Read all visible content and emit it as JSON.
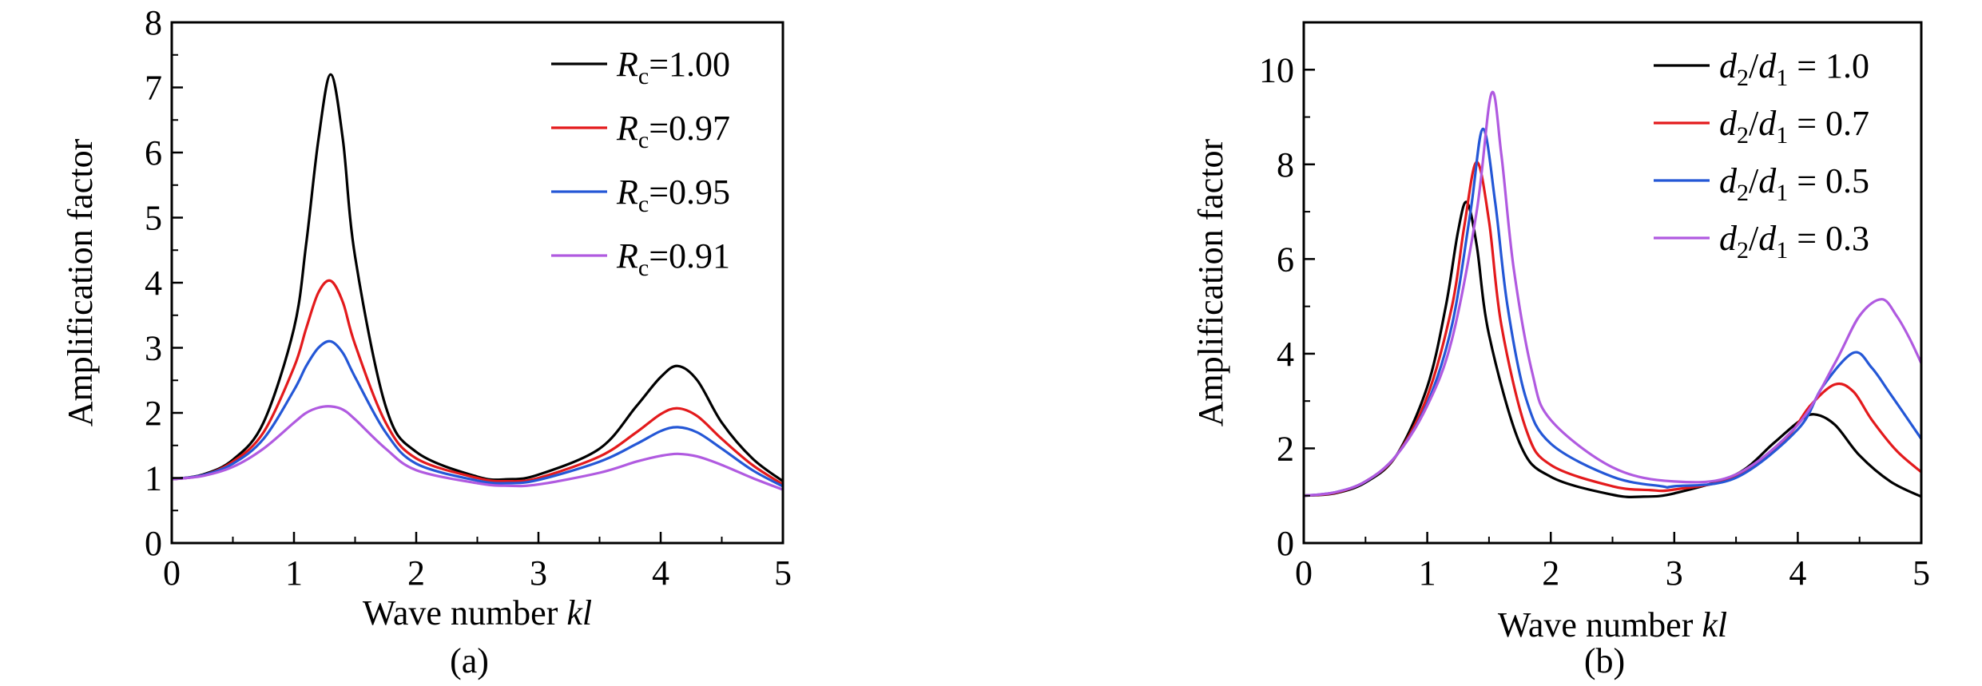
{
  "chart_data": [
    {
      "type": "line",
      "caption": "(a)",
      "xlabel_prefix": "Wave number ",
      "xlabel_var": "kl",
      "ylabel": "Amplification  factor",
      "xlim": [
        0,
        5
      ],
      "ylim": [
        0,
        8
      ],
      "xticks": [
        "0",
        "1",
        "2",
        "3",
        "4",
        "5"
      ],
      "yticks": [
        "0",
        "1",
        "2",
        "3",
        "4",
        "5",
        "6",
        "7",
        "8"
      ],
      "legend_position": "top-right",
      "grid": false,
      "series": [
        {
          "name": "Rc=1.00",
          "legend_var": "R",
          "legend_sub": "c",
          "legend_rest": "=1.00",
          "color": "#000000",
          "x": [
            0,
            0.25,
            0.5,
            0.75,
            1.0,
            1.1,
            1.2,
            1.3,
            1.4,
            1.5,
            1.75,
            2.0,
            2.5,
            2.75,
            3.0,
            3.5,
            3.8,
            4.0,
            4.14,
            4.3,
            4.5,
            4.75,
            5.0
          ],
          "y": [
            0.98,
            1.05,
            1.28,
            1.85,
            3.3,
            4.6,
            6.2,
            7.2,
            6.2,
            4.4,
            2.1,
            1.4,
            1.02,
            0.98,
            1.05,
            1.45,
            2.1,
            2.55,
            2.72,
            2.5,
            1.85,
            1.3,
            0.95
          ]
        },
        {
          "name": "Rc=0.97",
          "legend_var": "R",
          "legend_sub": "c",
          "legend_rest": "=0.97",
          "color": "#e31a1c",
          "x": [
            0,
            0.25,
            0.5,
            0.75,
            1.0,
            1.1,
            1.2,
            1.3,
            1.4,
            1.5,
            1.75,
            2.0,
            2.5,
            2.75,
            3.0,
            3.5,
            3.8,
            4.0,
            4.14,
            4.3,
            4.5,
            4.75,
            5.0
          ],
          "y": [
            0.98,
            1.04,
            1.25,
            1.7,
            2.7,
            3.3,
            3.85,
            4.03,
            3.7,
            3.05,
            1.85,
            1.3,
            1.0,
            0.95,
            1.0,
            1.33,
            1.7,
            1.98,
            2.07,
            1.95,
            1.6,
            1.2,
            0.9
          ]
        },
        {
          "name": "Rc=0.95",
          "legend_var": "R",
          "legend_sub": "c",
          "legend_rest": "=0.95",
          "color": "#2457d6",
          "x": [
            0,
            0.25,
            0.5,
            0.75,
            1.0,
            1.1,
            1.2,
            1.3,
            1.4,
            1.5,
            1.75,
            2.0,
            2.5,
            2.75,
            3.0,
            3.5,
            3.8,
            4.0,
            4.14,
            4.3,
            4.5,
            4.75,
            5.0
          ],
          "y": [
            0.98,
            1.04,
            1.22,
            1.6,
            2.35,
            2.72,
            3.0,
            3.1,
            2.92,
            2.55,
            1.7,
            1.22,
            0.96,
            0.92,
            0.97,
            1.25,
            1.52,
            1.72,
            1.78,
            1.7,
            1.45,
            1.12,
            0.87
          ]
        },
        {
          "name": "Rc=0.91",
          "legend_var": "R",
          "legend_sub": "c",
          "legend_rest": "=0.91",
          "color": "#b05ae0",
          "x": [
            0,
            0.25,
            0.5,
            0.75,
            1.0,
            1.1,
            1.2,
            1.3,
            1.4,
            1.5,
            1.75,
            2.0,
            2.5,
            2.75,
            3.0,
            3.5,
            3.8,
            4.0,
            4.14,
            4.3,
            4.5,
            4.75,
            5.0
          ],
          "y": [
            0.98,
            1.03,
            1.17,
            1.45,
            1.85,
            2.0,
            2.08,
            2.1,
            2.05,
            1.9,
            1.45,
            1.12,
            0.92,
            0.88,
            0.9,
            1.08,
            1.25,
            1.34,
            1.37,
            1.33,
            1.2,
            1.0,
            0.82
          ]
        }
      ]
    },
    {
      "type": "line",
      "caption": "(b)",
      "xlabel_prefix": "Wave number ",
      "xlabel_var": "kl",
      "ylabel": "Amplification  factor",
      "xlim": [
        0,
        5
      ],
      "ylim": [
        0,
        11
      ],
      "xticks": [
        "0",
        "1",
        "2",
        "3",
        "4",
        "5"
      ],
      "ytick_values": [
        0,
        2,
        4,
        6,
        8,
        10
      ],
      "yticks": [
        "0",
        "2",
        "4",
        "6",
        "8",
        "10"
      ],
      "legend_position": "top-right",
      "grid": false,
      "series": [
        {
          "name": "d2/d1 = 1.0",
          "legend_var": "d",
          "legend_sub": "2",
          "legend_var2": "d",
          "legend_sub2": "1",
          "legend_rest": " = 1.0",
          "color": "#000000",
          "x": [
            0,
            0.25,
            0.5,
            0.75,
            1.0,
            1.15,
            1.25,
            1.32,
            1.4,
            1.5,
            1.75,
            2.0,
            2.5,
            2.75,
            3.0,
            3.5,
            3.8,
            4.0,
            4.13,
            4.3,
            4.5,
            4.75,
            5.0
          ],
          "y": [
            1.0,
            1.05,
            1.28,
            1.85,
            3.3,
            5.0,
            6.6,
            7.2,
            6.3,
            4.4,
            2.1,
            1.4,
            1.02,
            0.98,
            1.05,
            1.45,
            2.1,
            2.55,
            2.72,
            2.5,
            1.85,
            1.3,
            0.98
          ]
        },
        {
          "name": "d2/d1 = 0.7",
          "legend_var": "d",
          "legend_sub": "2",
          "legend_var2": "d",
          "legend_sub2": "1",
          "legend_rest": " = 0.7",
          "color": "#e31a1c",
          "x": [
            0,
            0.25,
            0.5,
            0.75,
            1.0,
            1.2,
            1.3,
            1.4,
            1.5,
            1.6,
            1.8,
            2.0,
            2.5,
            2.8,
            3.0,
            3.5,
            3.9,
            4.1,
            4.3,
            4.45,
            4.6,
            4.8,
            5.0
          ],
          "y": [
            1.0,
            1.06,
            1.3,
            1.85,
            3.1,
            5.0,
            6.7,
            8.05,
            6.8,
            4.6,
            2.4,
            1.65,
            1.2,
            1.12,
            1.13,
            1.4,
            2.2,
            2.9,
            3.35,
            3.2,
            2.6,
            1.95,
            1.5
          ]
        },
        {
          "name": "d2/d1 = 0.5",
          "legend_var": "d",
          "legend_sub": "2",
          "legend_var2": "d",
          "legend_sub2": "1",
          "legend_rest": " = 0.5",
          "color": "#2457d6",
          "x": [
            0,
            0.25,
            0.5,
            0.75,
            1.0,
            1.2,
            1.35,
            1.45,
            1.55,
            1.65,
            1.8,
            2.0,
            2.5,
            2.9,
            3.0,
            3.5,
            4.0,
            4.2,
            4.45,
            4.6,
            4.75,
            5.0
          ],
          "y": [
            1.0,
            1.07,
            1.3,
            1.85,
            2.95,
            4.6,
            7.0,
            8.75,
            7.2,
            5.0,
            3.05,
            2.1,
            1.4,
            1.2,
            1.2,
            1.38,
            2.4,
            3.3,
            4.02,
            3.7,
            3.15,
            2.2
          ]
        },
        {
          "name": "d2/d1 = 0.3",
          "legend_var": "d",
          "legend_sub": "2",
          "legend_var2": "d",
          "legend_sub2": "1",
          "legend_rest": " = 0.3",
          "color": "#b05ae0",
          "x": [
            0,
            0.25,
            0.5,
            0.75,
            1.0,
            1.2,
            1.4,
            1.52,
            1.6,
            1.7,
            1.85,
            2.0,
            2.5,
            3.0,
            3.5,
            4.0,
            4.3,
            4.5,
            4.68,
            4.8,
            4.9,
            5.0
          ],
          "y": [
            1.0,
            1.07,
            1.3,
            1.85,
            2.9,
            4.3,
            7.0,
            9.5,
            8.2,
            5.8,
            3.6,
            2.6,
            1.6,
            1.3,
            1.45,
            2.5,
            3.8,
            4.8,
            5.15,
            4.8,
            4.35,
            3.8
          ]
        }
      ]
    }
  ]
}
